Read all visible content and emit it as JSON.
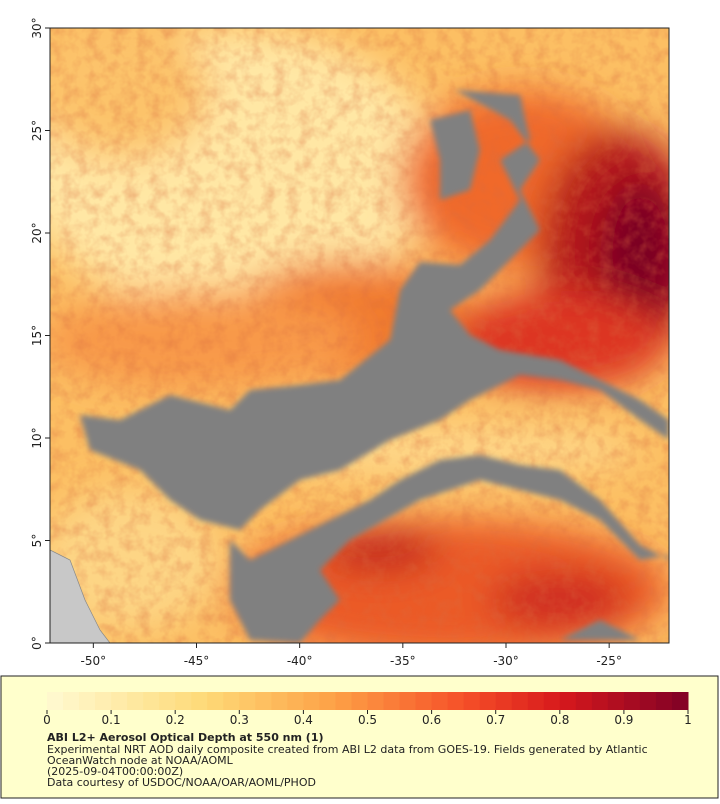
{
  "chart_data": {
    "type": "map",
    "title": "ABI L2+ Aerosol Optical Depth at 550 nm (1)",
    "notes": [
      "Experimental NRT AOD daily composite created from ABI L2 data from GOES-19. Fields generated by Atlantic",
      "OceanWatch node at NOAA/AOML",
      "(2025-09-04T00:00:00Z)",
      "Data courtesy of USDOC/NOAA/OAR/AOML/PHOD"
    ],
    "xlim": [
      -52.1,
      -22.1
    ],
    "ylim": [
      0,
      30
    ],
    "xticks": [
      {
        "value": -50,
        "label": "-50°"
      },
      {
        "value": -45,
        "label": "-45°"
      },
      {
        "value": -40,
        "label": "-40°"
      },
      {
        "value": -35,
        "label": "-35°"
      },
      {
        "value": -30,
        "label": "-30°"
      },
      {
        "value": -25,
        "label": "-25°"
      }
    ],
    "yticks": [
      {
        "value": 0,
        "label": "0°"
      },
      {
        "value": 5,
        "label": "5°"
      },
      {
        "value": 10,
        "label": "10°"
      },
      {
        "value": 15,
        "label": "15°"
      },
      {
        "value": 20,
        "label": "20°"
      },
      {
        "value": 25,
        "label": "25°"
      },
      {
        "value": 30,
        "label": "30°"
      }
    ],
    "colorbar": {
      "clim": [
        0,
        1
      ],
      "ticks": [
        0,
        0.1,
        0.2,
        0.3,
        0.4,
        0.5,
        0.6,
        0.7,
        0.8,
        0.9,
        1
      ]
    }
  }
}
